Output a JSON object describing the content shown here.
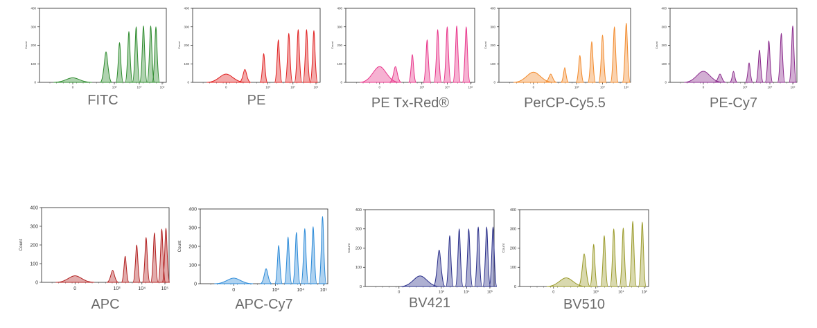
{
  "chart_data": [
    {
      "type": "area",
      "title": "FITC",
      "ylabel": "Count",
      "ylim": [
        0,
        400
      ],
      "yticks": [
        "0",
        "100",
        "200",
        "300",
        "400"
      ],
      "xticks": [
        "0",
        "10³",
        "10⁴",
        "10⁵"
      ],
      "color": "#2e8b2e",
      "series": [
        {
          "values": [
            {
              "x": 0.0,
              "y": 25
            },
            {
              "x": 1.6,
              "y": 165
            },
            {
              "x": 2.25,
              "y": 215
            },
            {
              "x": 2.7,
              "y": 275
            },
            {
              "x": 3.05,
              "y": 300
            },
            {
              "x": 3.4,
              "y": 305
            },
            {
              "x": 3.75,
              "y": 305
            },
            {
              "x": 4.0,
              "y": 300
            }
          ]
        }
      ]
    },
    {
      "type": "area",
      "title": "PE",
      "ylabel": "Count",
      "ylim": [
        0,
        400
      ],
      "yticks": [
        "0",
        "100",
        "200",
        "300",
        "400"
      ],
      "xticks": [
        "0",
        "10³",
        "10⁴",
        "10⁵"
      ],
      "color": "#e02020",
      "series": [
        {
          "values": [
            {
              "x": 0.0,
              "y": 45
            },
            {
              "x": 0.9,
              "y": 70
            },
            {
              "x": 1.8,
              "y": 155
            },
            {
              "x": 2.5,
              "y": 230
            },
            {
              "x": 3.0,
              "y": 265
            },
            {
              "x": 3.45,
              "y": 285
            },
            {
              "x": 3.85,
              "y": 285
            },
            {
              "x": 4.2,
              "y": 280
            }
          ]
        }
      ]
    },
    {
      "type": "area",
      "title": "PE Tx-Red®",
      "ylabel": "Count",
      "ylim": [
        0,
        400
      ],
      "yticks": [
        "0",
        "100",
        "200",
        "300",
        "400"
      ],
      "xticks": [
        "0",
        "10³",
        "10⁴",
        "10⁵"
      ],
      "color": "#e8348a",
      "series": [
        {
          "values": [
            {
              "x": 0.0,
              "y": 85
            },
            {
              "x": 0.75,
              "y": 85
            },
            {
              "x": 1.55,
              "y": 150
            },
            {
              "x": 2.25,
              "y": 230
            },
            {
              "x": 2.75,
              "y": 285
            },
            {
              "x": 3.2,
              "y": 300
            },
            {
              "x": 3.65,
              "y": 305
            },
            {
              "x": 4.1,
              "y": 300
            }
          ]
        }
      ]
    },
    {
      "type": "area",
      "title": "PerCP-Cy5.5",
      "ylabel": "Count",
      "ylim": [
        0,
        400
      ],
      "yticks": [
        "0",
        "100",
        "200",
        "300",
        "400"
      ],
      "xticks": [
        "0",
        "10³",
        "10⁴",
        "10⁵"
      ],
      "color": "#f2892a",
      "series": [
        {
          "values": [
            {
              "x": 0.0,
              "y": 55
            },
            {
              "x": 0.8,
              "y": 45
            },
            {
              "x": 1.45,
              "y": 80
            },
            {
              "x": 2.15,
              "y": 145
            },
            {
              "x": 2.7,
              "y": 220
            },
            {
              "x": 3.2,
              "y": 255
            },
            {
              "x": 3.75,
              "y": 300
            },
            {
              "x": 4.3,
              "y": 320
            }
          ]
        }
      ]
    },
    {
      "type": "area",
      "title": "PE-Cy7",
      "ylabel": "Count",
      "ylim": [
        0,
        400
      ],
      "yticks": [
        "0",
        "100",
        "200",
        "300",
        "400"
      ],
      "xticks": [
        "0",
        "10³",
        "10⁴",
        "10⁵"
      ],
      "color": "#8a2a8c",
      "series": [
        {
          "values": [
            {
              "x": 0.0,
              "y": 60
            },
            {
              "x": 0.8,
              "y": 45
            },
            {
              "x": 1.45,
              "y": 60
            },
            {
              "x": 2.2,
              "y": 105
            },
            {
              "x": 2.7,
              "y": 175
            },
            {
              "x": 3.15,
              "y": 225
            },
            {
              "x": 3.75,
              "y": 265
            },
            {
              "x": 4.3,
              "y": 305
            }
          ]
        }
      ]
    },
    {
      "type": "area",
      "title": "APC",
      "ylabel": "Count",
      "ylim": [
        0,
        400
      ],
      "yticks": [
        "0",
        "100",
        "200",
        "300",
        "400"
      ],
      "xticks": [
        "0",
        "10³",
        "10⁴",
        "10⁵"
      ],
      "color": "#b22222",
      "series": [
        {
          "values": [
            {
              "x": 0.0,
              "y": 35
            },
            {
              "x": 1.8,
              "y": 65
            },
            {
              "x": 2.4,
              "y": 140
            },
            {
              "x": 2.95,
              "y": 200
            },
            {
              "x": 3.4,
              "y": 240
            },
            {
              "x": 3.8,
              "y": 265
            },
            {
              "x": 4.15,
              "y": 285
            },
            {
              "x": 4.35,
              "y": 290
            }
          ]
        }
      ]
    },
    {
      "type": "area",
      "title": "APC-Cy7",
      "ylabel": "Count",
      "ylim": [
        0,
        400
      ],
      "yticks": [
        "0",
        "100",
        "200",
        "300",
        "400"
      ],
      "xticks": [
        "0",
        "10³",
        "10⁴",
        "10⁵"
      ],
      "color": "#2b8ad8",
      "series": [
        {
          "values": [
            {
              "x": 0.0,
              "y": 30
            },
            {
              "x": 1.55,
              "y": 80
            },
            {
              "x": 2.15,
              "y": 205
            },
            {
              "x": 2.6,
              "y": 250
            },
            {
              "x": 3.0,
              "y": 275
            },
            {
              "x": 3.4,
              "y": 295
            },
            {
              "x": 3.8,
              "y": 305
            },
            {
              "x": 4.25,
              "y": 360
            }
          ]
        }
      ]
    },
    {
      "type": "area",
      "title": "BV421",
      "ylabel": "Count",
      "ylim": [
        0,
        400
      ],
      "yticks": [
        "0",
        "100",
        "200",
        "300",
        "400"
      ],
      "xticks": [
        "0",
        "10³",
        "10⁴",
        "10⁵"
      ],
      "color": "#2a2f8a",
      "series": [
        {
          "values": [
            {
              "x": 1.0,
              "y": 55
            },
            {
              "x": 1.9,
              "y": 190
            },
            {
              "x": 2.4,
              "y": 265
            },
            {
              "x": 2.85,
              "y": 300
            },
            {
              "x": 3.3,
              "y": 300
            },
            {
              "x": 3.75,
              "y": 310
            },
            {
              "x": 4.15,
              "y": 310
            },
            {
              "x": 4.45,
              "y": 310
            }
          ]
        }
      ]
    },
    {
      "type": "area",
      "title": "BV510",
      "ylabel": "Count",
      "ylim": [
        0,
        400
      ],
      "yticks": [
        "0",
        "100",
        "200",
        "300",
        "400"
      ],
      "xticks": [
        "0",
        "10³",
        "10⁴",
        "10⁵"
      ],
      "color": "#9a9a2a",
      "series": [
        {
          "values": [
            {
              "x": 0.6,
              "y": 45
            },
            {
              "x": 1.45,
              "y": 170
            },
            {
              "x": 1.9,
              "y": 220
            },
            {
              "x": 2.4,
              "y": 265
            },
            {
              "x": 2.85,
              "y": 300
            },
            {
              "x": 3.3,
              "y": 305
            },
            {
              "x": 3.75,
              "y": 340
            },
            {
              "x": 4.2,
              "y": 335
            }
          ]
        }
      ]
    }
  ]
}
